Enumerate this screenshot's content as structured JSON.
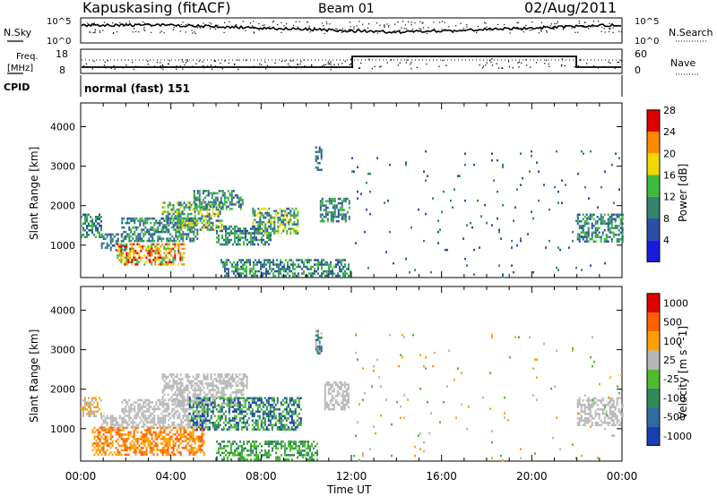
{
  "header": {
    "title": "Kapuskasing (fitACF)",
    "beam": "Beam 01",
    "date": "02/Aug/2011"
  },
  "top_panels": {
    "nsky": {
      "label": "N.Sky",
      "scale_top": "10^5",
      "scale_bottom": "10^0",
      "right_top": "10^5",
      "right_bottom": "10^0",
      "right_label": "N.Search"
    },
    "freq": {
      "label_line1": "Freq.",
      "label_line2": "[MHz]",
      "left_ticks": [
        "18",
        "8"
      ],
      "right_ticks": [
        "60",
        "0"
      ],
      "right_label": "Nave"
    },
    "cpid": {
      "label": "CPID",
      "text": "normal (fast) 151"
    }
  },
  "chart_data": [
    {
      "type": "heatmap",
      "name": "power",
      "ylabel": "Slant Range [km]",
      "yticks": [
        1000,
        2000,
        3000,
        4000
      ],
      "ylim": [
        180,
        4600
      ],
      "xlim": [
        0,
        24
      ],
      "colorbar": {
        "label": "Power [dB]",
        "ticks": [
          "4",
          "8",
          "12",
          "16",
          "20",
          "24",
          "28"
        ],
        "colors": [
          "#1a1adf",
          "#2c4fa5",
          "#33856e",
          "#3dbb3d",
          "#f0d800",
          "#ff8a00",
          "#e00000"
        ]
      },
      "patches": [
        {
          "t0": 0.0,
          "t1": 0.9,
          "r0": 1200,
          "r1": 1800,
          "c": [
            1,
            2,
            3
          ]
        },
        {
          "t0": 0.9,
          "t1": 2.0,
          "r0": 900,
          "r1": 1300,
          "c": [
            1,
            2,
            2
          ]
        },
        {
          "t0": 1.6,
          "t1": 4.6,
          "r0": 500,
          "r1": 1050,
          "c": [
            3,
            4,
            5,
            6
          ]
        },
        {
          "t0": 1.8,
          "t1": 5.2,
          "r0": 1100,
          "r1": 1700,
          "c": [
            1,
            2,
            3
          ]
        },
        {
          "t0": 3.6,
          "t1": 6.3,
          "r0": 1400,
          "r1": 2100,
          "c": [
            1,
            2,
            3,
            4
          ]
        },
        {
          "t0": 5.0,
          "t1": 7.2,
          "r0": 1900,
          "r1": 2400,
          "c": [
            1,
            2,
            3
          ]
        },
        {
          "t0": 6.0,
          "t1": 8.4,
          "r0": 1000,
          "r1": 1500,
          "c": [
            1,
            2,
            3
          ]
        },
        {
          "t0": 7.6,
          "t1": 9.6,
          "r0": 1300,
          "r1": 1950,
          "c": [
            1,
            2,
            3,
            4
          ]
        },
        {
          "t0": 10.6,
          "t1": 11.9,
          "r0": 1600,
          "r1": 2200,
          "c": [
            1,
            2,
            3
          ]
        },
        {
          "t0": 6.2,
          "t1": 12.0,
          "r0": 200,
          "r1": 650,
          "c": [
            1,
            2,
            3
          ]
        },
        {
          "t0": 10.4,
          "t1": 10.7,
          "r0": 2900,
          "r1": 3500,
          "c": [
            1,
            2
          ]
        },
        {
          "t0": 22.0,
          "t1": 24.0,
          "r0": 1100,
          "r1": 1800,
          "c": [
            1,
            2,
            3
          ]
        },
        {
          "t0": 12.0,
          "t1": 24.0,
          "r0": 200,
          "r1": 3400,
          "c": [
            1,
            2
          ],
          "sparse": true
        }
      ]
    },
    {
      "type": "heatmap",
      "name": "velocity",
      "ylabel": "Slant Range [km]",
      "xlabel": "Time UT",
      "xticks": [
        "00:00",
        "04:00",
        "08:00",
        "12:00",
        "16:00",
        "20:00",
        "00:00"
      ],
      "yticks": [
        1000,
        2000,
        3000,
        4000
      ],
      "ylim": [
        180,
        4600
      ],
      "xlim": [
        0,
        24
      ],
      "colorbar": {
        "label": "Velocity [m s^-1]",
        "ticks": [
          "1000",
          "500",
          "100",
          "25",
          "-25",
          "-100",
          "-500",
          "-1000"
        ],
        "colors": [
          "#1a3fb0",
          "#2f6aa0",
          "#2e8a5a",
          "#4cbc2e",
          "#b8b8b8",
          "#ffa000",
          "#ff6000",
          "#e00000"
        ]
      },
      "patches": [
        {
          "t0": 0.0,
          "t1": 0.9,
          "r0": 1300,
          "r1": 1800,
          "c": [
            4,
            5
          ]
        },
        {
          "t0": 0.9,
          "t1": 1.7,
          "r0": 1000,
          "r1": 1350,
          "c": [
            4
          ]
        },
        {
          "t0": 0.5,
          "t1": 5.5,
          "r0": 350,
          "r1": 1050,
          "c": [
            5,
            6
          ]
        },
        {
          "t0": 1.8,
          "t1": 5.6,
          "r0": 1050,
          "r1": 1750,
          "c": [
            4
          ]
        },
        {
          "t0": 3.6,
          "t1": 7.4,
          "r0": 1600,
          "r1": 2400,
          "c": [
            4
          ]
        },
        {
          "t0": 4.8,
          "t1": 9.8,
          "r0": 1000,
          "r1": 1800,
          "c": [
            2,
            3,
            0
          ]
        },
        {
          "t0": 6.0,
          "t1": 10.5,
          "r0": 200,
          "r1": 700,
          "c": [
            3,
            2
          ]
        },
        {
          "t0": 10.8,
          "t1": 11.9,
          "r0": 1500,
          "r1": 2200,
          "c": [
            4
          ]
        },
        {
          "t0": 10.4,
          "t1": 10.7,
          "r0": 2900,
          "r1": 3500,
          "c": [
            1,
            2,
            4
          ]
        },
        {
          "t0": 22.0,
          "t1": 24.0,
          "r0": 1100,
          "r1": 1800,
          "c": [
            4
          ]
        },
        {
          "t0": 12.0,
          "t1": 24.0,
          "r0": 200,
          "r1": 3400,
          "c": [
            4,
            3,
            5
          ],
          "sparse": true
        }
      ]
    }
  ]
}
